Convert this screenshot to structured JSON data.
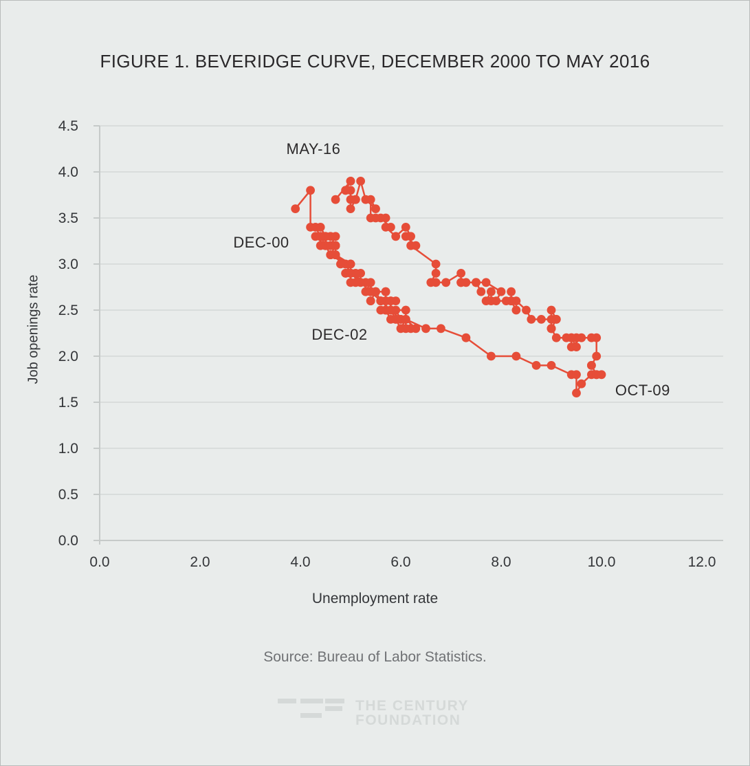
{
  "page": {
    "source": "Source: Bureau of Labor Statistics.",
    "logo_line1": "THE CENTURY",
    "logo_line2": "FOUNDATION"
  },
  "chart_data": {
    "type": "scatter",
    "title": "FIGURE 1. BEVERIDGE CURVE, DECEMBER 2000 TO MAY 2016",
    "xlabel": "Unemployment rate",
    "ylabel": "Job openings rate",
    "xlim": [
      0,
      12.4
    ],
    "ylim": [
      0,
      4.5
    ],
    "grid": true,
    "legend": "none",
    "x_ticks": [
      0,
      2,
      4,
      6,
      8,
      10,
      12
    ],
    "x_tick_labels": [
      "0.0",
      "2.0",
      "4.0",
      "6.0",
      "8.0",
      "10.0",
      "12.0"
    ],
    "y_ticks": [
      0,
      0.5,
      1.0,
      1.5,
      2.0,
      2.5,
      3.0,
      3.5,
      4.0,
      4.5
    ],
    "y_tick_labels": [
      "0.0",
      "0.5",
      "1.0",
      "1.5",
      "2.0",
      "2.5",
      "3.0",
      "3.5",
      "4.0",
      "4.5"
    ],
    "series_color": "#e64d38",
    "annotations": [
      {
        "label": "MAY-16",
        "x": 4.26,
        "y": 4.25
      },
      {
        "label": "DEC-00",
        "x": 3.22,
        "y": 3.23
      },
      {
        "label": "DEC-02",
        "x": 4.78,
        "y": 2.23
      },
      {
        "label": "OCT-09",
        "x": 10.82,
        "y": 1.63
      }
    ],
    "series_name": "Beveridge curve, monthly, Dec 2000 - May 2016 (x = unemployment rate, y = job openings rate)",
    "points": [
      [
        3.9,
        3.6
      ],
      [
        4.2,
        3.8
      ],
      [
        4.2,
        3.4
      ],
      [
        4.3,
        3.4
      ],
      [
        4.4,
        3.3
      ],
      [
        4.3,
        3.3
      ],
      [
        4.5,
        3.2
      ],
      [
        4.6,
        3.1
      ],
      [
        4.9,
        3.0
      ],
      [
        5.0,
        2.9
      ],
      [
        5.3,
        2.8
      ],
      [
        5.5,
        2.7
      ],
      [
        5.7,
        2.7
      ],
      [
        5.7,
        2.6
      ],
      [
        5.7,
        2.7
      ],
      [
        5.7,
        2.6
      ],
      [
        5.9,
        2.6
      ],
      [
        5.8,
        2.6
      ],
      [
        5.8,
        2.6
      ],
      [
        5.8,
        2.5
      ],
      [
        5.7,
        2.5
      ],
      [
        5.7,
        2.6
      ],
      [
        5.7,
        2.5
      ],
      [
        5.9,
        2.5
      ],
      [
        6.0,
        2.4
      ],
      [
        5.8,
        2.5
      ],
      [
        5.9,
        2.4
      ],
      [
        5.9,
        2.4
      ],
      [
        6.0,
        2.3
      ],
      [
        6.1,
        2.4
      ],
      [
        6.3,
        2.3
      ],
      [
        6.2,
        2.3
      ],
      [
        6.1,
        2.3
      ],
      [
        6.1,
        2.4
      ],
      [
        6.0,
        2.4
      ],
      [
        5.8,
        2.4
      ],
      [
        5.7,
        2.5
      ],
      [
        5.7,
        2.5
      ],
      [
        5.6,
        2.5
      ],
      [
        5.8,
        2.5
      ],
      [
        5.6,
        2.6
      ],
      [
        5.6,
        2.6
      ],
      [
        5.6,
        2.6
      ],
      [
        5.5,
        2.7
      ],
      [
        5.4,
        2.6
      ],
      [
        5.4,
        2.6
      ],
      [
        5.5,
        2.7
      ],
      [
        5.4,
        2.7
      ],
      [
        5.4,
        2.7
      ],
      [
        5.3,
        2.7
      ],
      [
        5.4,
        2.8
      ],
      [
        5.2,
        2.8
      ],
      [
        5.2,
        2.9
      ],
      [
        5.1,
        2.8
      ],
      [
        5.0,
        2.8
      ],
      [
        5.0,
        2.9
      ],
      [
        4.9,
        2.9
      ],
      [
        5.0,
        3.0
      ],
      [
        5.0,
        2.9
      ],
      [
        5.0,
        2.9
      ],
      [
        4.9,
        3.0
      ],
      [
        4.7,
        3.1
      ],
      [
        4.8,
        3.0
      ],
      [
        4.7,
        3.1
      ],
      [
        4.7,
        3.2
      ],
      [
        4.6,
        3.1
      ],
      [
        4.6,
        3.1
      ],
      [
        4.7,
        3.2
      ],
      [
        4.7,
        3.2
      ],
      [
        4.5,
        3.2
      ],
      [
        4.4,
        3.3
      ],
      [
        4.5,
        3.2
      ],
      [
        4.4,
        3.2
      ],
      [
        4.6,
        3.3
      ],
      [
        4.5,
        3.3
      ],
      [
        4.4,
        3.4
      ],
      [
        4.5,
        3.3
      ],
      [
        4.4,
        3.3
      ],
      [
        4.6,
        3.2
      ],
      [
        4.7,
        3.3
      ],
      [
        4.6,
        3.2
      ],
      [
        4.7,
        3.2
      ],
      [
        4.7,
        3.1
      ],
      [
        4.7,
        3.1
      ],
      [
        5.0,
        3.0
      ],
      [
        5.0,
        3.0
      ],
      [
        4.9,
        2.9
      ],
      [
        5.1,
        2.9
      ],
      [
        5.0,
        2.9
      ],
      [
        5.4,
        2.7
      ],
      [
        5.6,
        2.6
      ],
      [
        5.8,
        2.5
      ],
      [
        6.1,
        2.5
      ],
      [
        6.1,
        2.4
      ],
      [
        6.5,
        2.3
      ],
      [
        6.8,
        2.3
      ],
      [
        7.3,
        2.2
      ],
      [
        7.8,
        2.0
      ],
      [
        8.3,
        2.0
      ],
      [
        8.7,
        1.9
      ],
      [
        9.0,
        1.9
      ],
      [
        9.4,
        1.8
      ],
      [
        9.5,
        1.8
      ],
      [
        9.5,
        1.6
      ],
      [
        9.6,
        1.7
      ],
      [
        9.8,
        1.8
      ],
      [
        10.0,
        1.8
      ],
      [
        9.9,
        1.8
      ],
      [
        9.9,
        1.8
      ],
      [
        9.8,
        1.9
      ],
      [
        9.8,
        1.9
      ],
      [
        9.9,
        2.0
      ],
      [
        9.9,
        2.2
      ],
      [
        9.6,
        2.2
      ],
      [
        9.4,
        2.1
      ],
      [
        9.4,
        2.2
      ],
      [
        9.5,
        2.2
      ],
      [
        9.5,
        2.1
      ],
      [
        9.4,
        2.2
      ],
      [
        9.8,
        2.2
      ],
      [
        9.3,
        2.2
      ],
      [
        9.1,
        2.2
      ],
      [
        9.0,
        2.3
      ],
      [
        9.0,
        2.3
      ],
      [
        9.1,
        2.4
      ],
      [
        9.0,
        2.3
      ],
      [
        9.1,
        2.4
      ],
      [
        9.0,
        2.5
      ],
      [
        9.0,
        2.3
      ],
      [
        9.0,
        2.4
      ],
      [
        8.8,
        2.4
      ],
      [
        8.6,
        2.4
      ],
      [
        8.5,
        2.5
      ],
      [
        8.3,
        2.6
      ],
      [
        8.3,
        2.5
      ],
      [
        8.2,
        2.6
      ],
      [
        8.2,
        2.6
      ],
      [
        8.2,
        2.6
      ],
      [
        8.2,
        2.7
      ],
      [
        8.2,
        2.6
      ],
      [
        8.1,
        2.6
      ],
      [
        7.8,
        2.6
      ],
      [
        7.8,
        2.7
      ],
      [
        7.7,
        2.6
      ],
      [
        7.9,
        2.6
      ],
      [
        8.0,
        2.7
      ],
      [
        7.7,
        2.8
      ],
      [
        7.5,
        2.8
      ],
      [
        7.6,
        2.7
      ],
      [
        7.5,
        2.8
      ],
      [
        7.5,
        2.8
      ],
      [
        7.3,
        2.8
      ],
      [
        7.2,
        2.8
      ],
      [
        7.2,
        2.8
      ],
      [
        7.2,
        2.9
      ],
      [
        6.9,
        2.8
      ],
      [
        6.7,
        2.8
      ],
      [
        6.6,
        2.8
      ],
      [
        6.7,
        2.9
      ],
      [
        6.7,
        3.0
      ],
      [
        6.2,
        3.2
      ],
      [
        6.3,
        3.2
      ],
      [
        6.1,
        3.3
      ],
      [
        6.2,
        3.3
      ],
      [
        6.1,
        3.4
      ],
      [
        5.9,
        3.3
      ],
      [
        5.7,
        3.4
      ],
      [
        5.8,
        3.4
      ],
      [
        5.6,
        3.5
      ],
      [
        5.7,
        3.5
      ],
      [
        5.5,
        3.5
      ],
      [
        5.4,
        3.5
      ],
      [
        5.4,
        3.7
      ],
      [
        5.5,
        3.6
      ],
      [
        5.3,
        3.7
      ],
      [
        5.2,
        3.9
      ],
      [
        5.1,
        3.7
      ],
      [
        5.1,
        3.7
      ],
      [
        5.0,
        3.6
      ],
      [
        5.0,
        3.7
      ],
      [
        5.0,
        3.8
      ],
      [
        4.9,
        3.8
      ],
      [
        4.9,
        3.8
      ],
      [
        5.0,
        3.9
      ],
      [
        5.0,
        3.9
      ],
      [
        4.7,
        3.7
      ]
    ]
  }
}
